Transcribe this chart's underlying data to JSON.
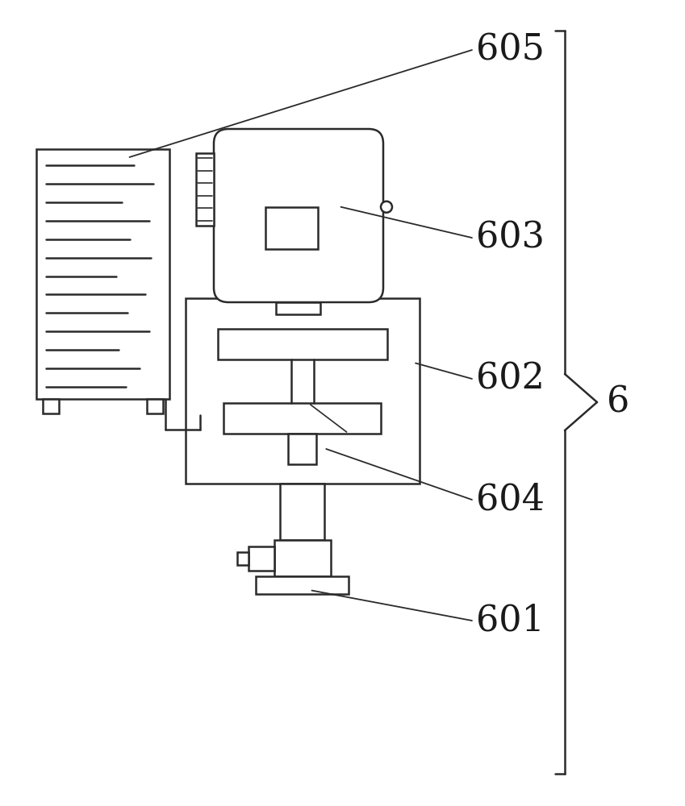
{
  "bg_color": "#ffffff",
  "line_color": "#2a2a2a",
  "label_color": "#1a1a1a",
  "label_fontsize": 32,
  "fig_w": 8.49,
  "fig_h": 10.0,
  "dpi": 100
}
